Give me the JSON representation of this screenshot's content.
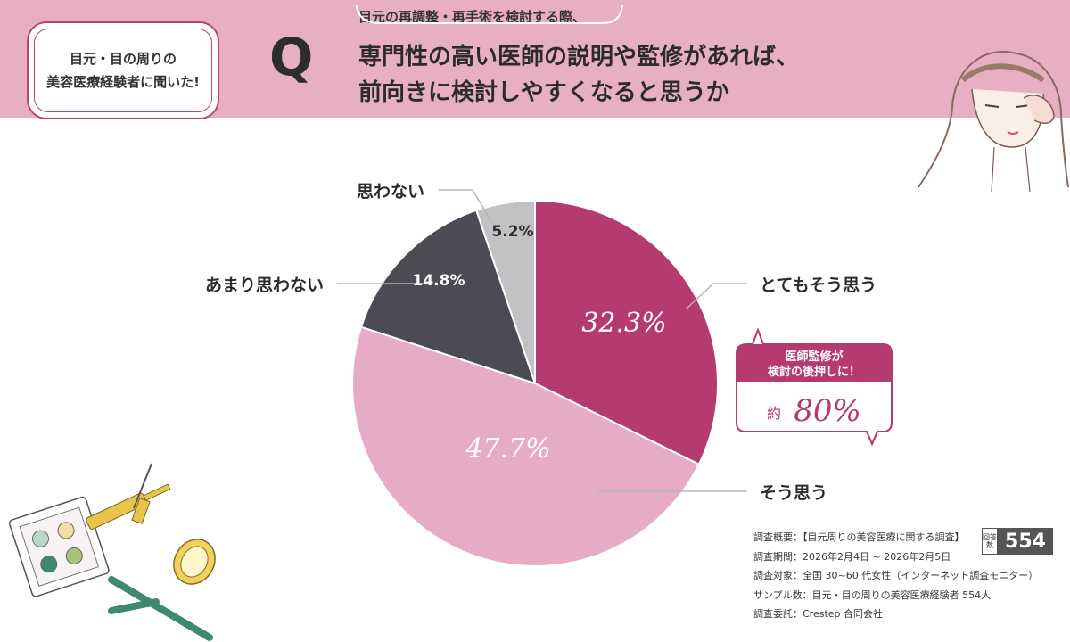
{
  "badge": {
    "line1": "目元・目の周りの",
    "line2": "美容医療経験者に聞いた!"
  },
  "question": {
    "letter": "Q",
    "subtitle": "目元の再調整・再手術を検討する際、",
    "line1": "専門性の高い医師の説明や監修があれば、",
    "line2": "前向きに検討しやすくなると思うか"
  },
  "colors": {
    "header_bg": "#e8afc4",
    "strongly_agree": "#b43a6f",
    "agree": "#e7acc5",
    "somewhat_disagree": "#4a4b53",
    "disagree": "#c3c1c4",
    "accent": "#b43a6f"
  },
  "chart_data": {
    "type": "pie",
    "start_angle_deg": 0,
    "direction": "clockwise",
    "slices": [
      {
        "name": "とてもそう思う",
        "value": 32.3,
        "label": "32.3%",
        "color": "#b43a6f"
      },
      {
        "name": "そう思う",
        "value": 47.7,
        "label": "47.7%",
        "color": "#e7acc5"
      },
      {
        "name": "あまり思わない",
        "value": 14.8,
        "label": "14.8%",
        "color": "#4a4b53"
      },
      {
        "name": "思わない",
        "value": 5.2,
        "label": "5.2%",
        "color": "#c3c1c4"
      }
    ]
  },
  "callout": {
    "line1": "医師監修が",
    "line2": "検討の後押しに！",
    "prefix": "約",
    "value": "80%"
  },
  "survey": {
    "overview": "調査概要：【目元周りの美容医療に関する調査】",
    "period": "調査期間：2026年2月4日 ~ 2026年2月5日",
    "target": "調査対象：全国 30~60 代女性（インターネット調査モニター）",
    "sample": "サンプル数：目元・目の周りの美容医療経験者 554人",
    "client": "調査委託：Crestep 合同会社",
    "count_label": "回答数",
    "count": "554"
  }
}
